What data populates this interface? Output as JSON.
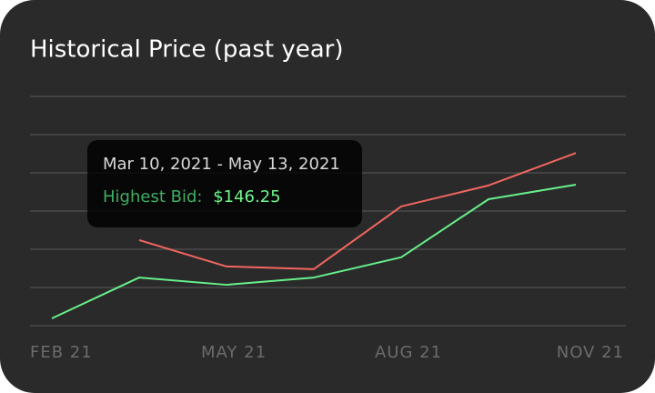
{
  "chart_data": {
    "type": "line",
    "title": "Historical Price (past year)",
    "categories": [
      "FEB 21",
      null,
      "MAY 21",
      null,
      "AUG 21",
      null,
      "NOV 21"
    ],
    "series": [
      {
        "color": "#f2665f",
        "values": [
          null,
          2.24,
          1.55,
          1.48,
          3.12,
          3.67,
          4.52
        ]
      },
      {
        "color": "#66f08a",
        "values": [
          0.19,
          1.26,
          1.07,
          1.26,
          1.79,
          3.31,
          3.69
        ]
      }
    ],
    "ylim": [
      0,
      6
    ],
    "ygrid": [
      0,
      1,
      2,
      3,
      4,
      5,
      6
    ],
    "tooltip": {
      "range": "Mar 10, 2021 - May 13, 2021",
      "label": "Highest Bid:",
      "value": "$146.25"
    }
  }
}
